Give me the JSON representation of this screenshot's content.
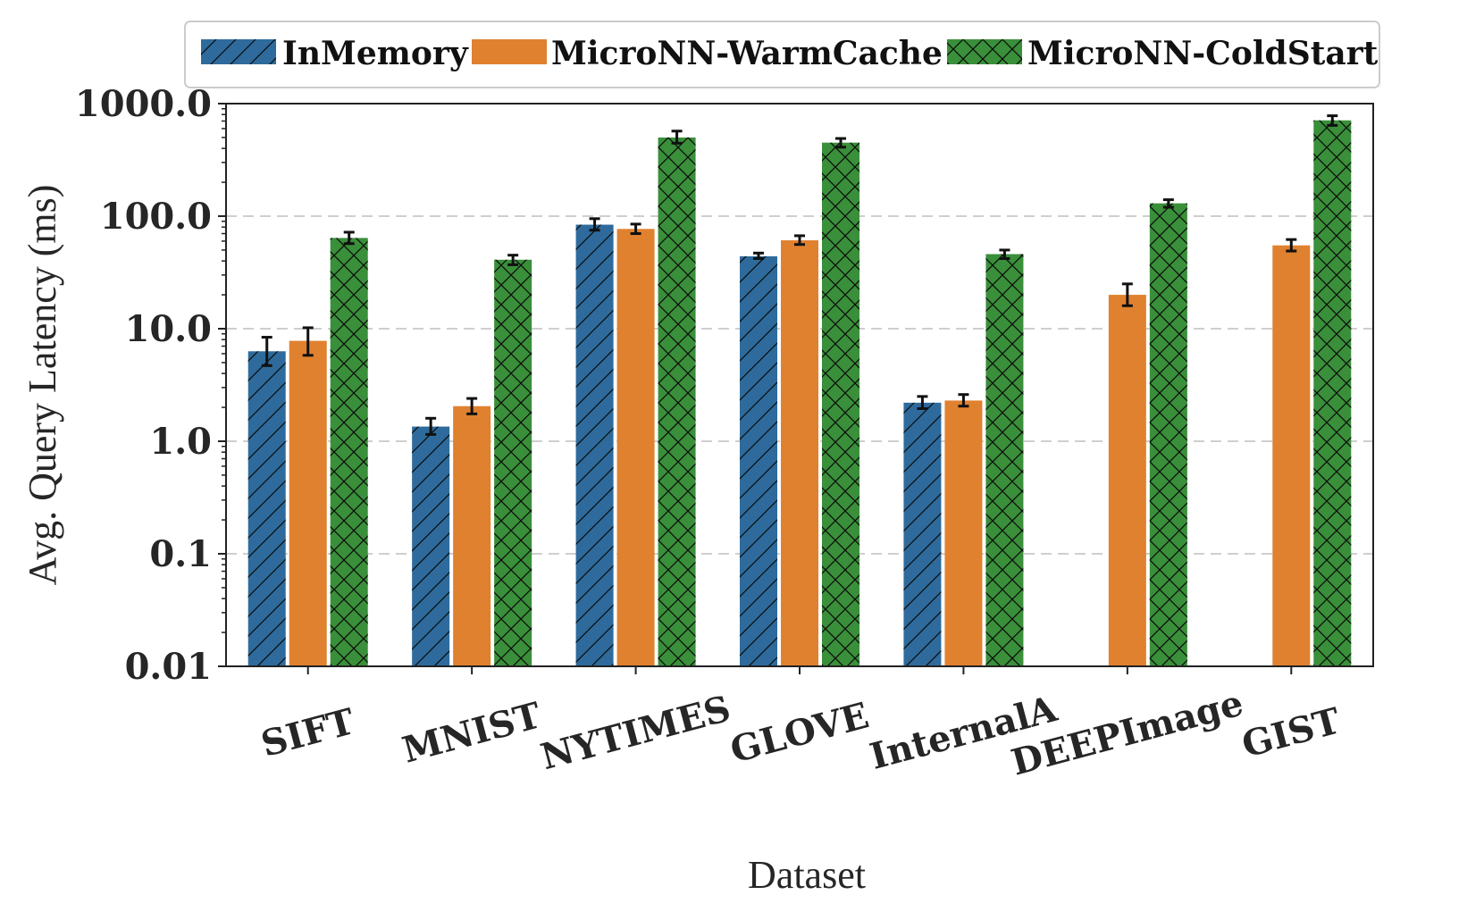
{
  "chart_data": {
    "type": "bar",
    "title": "",
    "xlabel": "Dataset",
    "ylabel": "Avg. Query Latency (ms)",
    "yscale": "log",
    "ylim": [
      0.01,
      1000
    ],
    "yticks": [
      0.01,
      0.1,
      1,
      10,
      100,
      1000
    ],
    "ytick_labels": [
      "0.01",
      "0.1",
      "1.0",
      "10.0",
      "100.0",
      "1000.0"
    ],
    "grid": "y-dashed",
    "legend_position": "top",
    "categories": [
      "SIFT",
      "MNIST",
      "NYTIMES",
      "GLOVE",
      "InternalA",
      "DEEPImage",
      "GIST"
    ],
    "series": [
      {
        "name": "InMemory",
        "color": "#2e6b9c",
        "hatch": "diagonal",
        "values": [
          6.3,
          1.35,
          84,
          44,
          2.2,
          null,
          null
        ],
        "err_low": [
          4.7,
          1.15,
          75,
          42,
          1.95,
          null,
          null
        ],
        "err_high": [
          8.4,
          1.6,
          95,
          47,
          2.5,
          null,
          null
        ]
      },
      {
        "name": "MicroNN-WarmCache",
        "color": "#e0812f",
        "hatch": "none",
        "values": [
          7.8,
          2.05,
          77,
          61,
          2.3,
          20,
          55
        ],
        "err_low": [
          5.8,
          1.75,
          70,
          56,
          2.05,
          16,
          49
        ],
        "err_high": [
          10.2,
          2.4,
          85,
          67,
          2.6,
          25,
          62
        ]
      },
      {
        "name": "MicroNN-ColdStart",
        "color": "#3a8f3a",
        "hatch": "cross",
        "values": [
          64,
          41,
          500,
          450,
          46,
          130,
          710
        ],
        "err_low": [
          57,
          37,
          445,
          410,
          42,
          120,
          640
        ],
        "err_high": [
          72,
          45,
          570,
          490,
          50,
          140,
          780
        ]
      }
    ]
  }
}
